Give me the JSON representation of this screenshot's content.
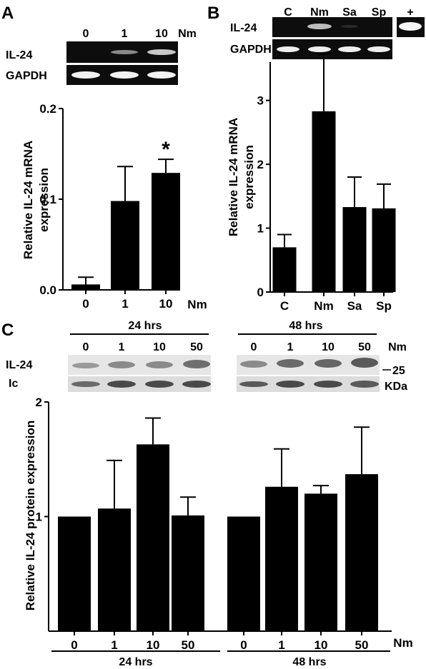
{
  "panels": {
    "a": {
      "letter": "A",
      "gel": {
        "lanes": [
          "0",
          "1",
          "10"
        ],
        "unit": "Nm",
        "rows": [
          "IL-24",
          "GAPDH"
        ]
      },
      "ylabel": [
        "Relative IL-24 mRNA",
        "expression"
      ],
      "xunit": "Nm"
    },
    "b": {
      "letter": "B",
      "gel": {
        "lanes": [
          "C",
          "Nm",
          "Sa",
          "Sp"
        ],
        "control_label": "+",
        "rows": [
          "IL-24",
          "GAPDH"
        ]
      },
      "ylabel": [
        "Relative IL-24 mRNA",
        "expression"
      ]
    },
    "c": {
      "letter": "C",
      "groups": [
        "24 hrs",
        "48 hrs"
      ],
      "blot": {
        "lanes": [
          "0",
          "1",
          "10",
          "50"
        ],
        "unit": "Nm",
        "rows": [
          "IL-24",
          "Ic"
        ],
        "marker": "25",
        "marker_unit": "KDa"
      },
      "ylabel": "Relative IL-24 protein expression",
      "xunit": "Nm"
    }
  },
  "chart_data": [
    {
      "panel": "A",
      "type": "bar",
      "categories": [
        "0",
        "1",
        "10"
      ],
      "values": [
        0.006,
        0.098,
        0.129
      ],
      "errors": [
        0.008,
        0.038,
        0.015
      ],
      "significance": [
        "",
        "",
        "*"
      ],
      "ylim": [
        0,
        0.2
      ],
      "yticks": [
        "0.0",
        "0.1",
        "0.2"
      ],
      "ytick_values": [
        0,
        0.1,
        0.2
      ],
      "xlabel": "Nm",
      "ylabel": "Relative IL-24 mRNA expression"
    },
    {
      "panel": "B",
      "type": "bar",
      "categories": [
        "C",
        "Nm",
        "Sa",
        "Sp"
      ],
      "values": [
        0.7,
        2.83,
        1.33,
        1.31
      ],
      "errors": [
        0.2,
        0.9,
        0.47,
        0.38
      ],
      "ylim": [
        0,
        3.6
      ],
      "yticks": [
        "0",
        "1",
        "2",
        "3"
      ],
      "ytick_values": [
        0,
        1,
        2,
        3
      ],
      "ylabel": "Relative IL-24 mRNA expression"
    },
    {
      "panel": "C",
      "type": "bar",
      "categories": [
        "0",
        "1",
        "10",
        "50",
        "0",
        "1",
        "10",
        "50"
      ],
      "groups": [
        "24 hrs",
        "24 hrs",
        "24 hrs",
        "24 hrs",
        "48 hrs",
        "48 hrs",
        "48 hrs",
        "48 hrs"
      ],
      "values": [
        1.0,
        1.07,
        1.63,
        1.01,
        1.0,
        1.26,
        1.2,
        1.37
      ],
      "errors": [
        0,
        0.42,
        0.23,
        0.16,
        0,
        0.33,
        0.07,
        0.41
      ],
      "ylim": [
        0,
        2
      ],
      "yticks": [
        "1",
        "2"
      ],
      "ytick_values": [
        1,
        2
      ],
      "xlabel": "Nm",
      "ylabel": "Relative IL-24 protein expression"
    }
  ]
}
